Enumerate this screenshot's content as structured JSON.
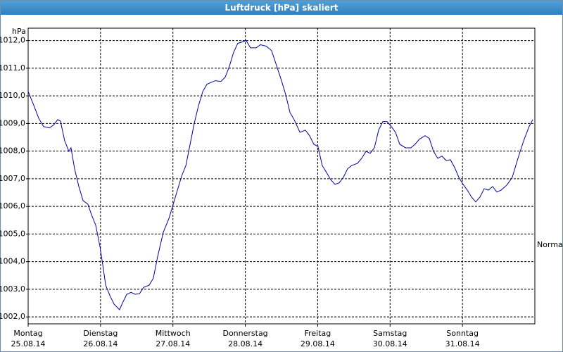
{
  "chart_data": {
    "type": "line",
    "title": "Luftdruck [hPa] skaliert",
    "y_unit": "hPa",
    "annotation": {
      "text": "Normal",
      "value": 1004.6
    },
    "xlim": [
      0,
      168
    ],
    "xticks": [
      {
        "value": 0,
        "label": "Montag",
        "date": "25.08.14"
      },
      {
        "value": 24,
        "label": "Dienstag",
        "date": "26.08.14"
      },
      {
        "value": 48,
        "label": "Mittwoch",
        "date": "27.08.14"
      },
      {
        "value": 72,
        "label": "Donnerstag",
        "date": "28.08.14"
      },
      {
        "value": 96,
        "label": "Freitag",
        "date": "29.08.14"
      },
      {
        "value": 120,
        "label": "Samstag",
        "date": "30.08.14"
      },
      {
        "value": 144,
        "label": "Sonntag",
        "date": "31.08.14"
      }
    ],
    "ylim": [
      1001.75,
      1012.45
    ],
    "yticks": [
      {
        "value": 1002,
        "label": "1002,0"
      },
      {
        "value": 1003,
        "label": "1003,0"
      },
      {
        "value": 1004,
        "label": "1004,0"
      },
      {
        "value": 1005,
        "label": "1005,0"
      },
      {
        "value": 1006,
        "label": "1006,0"
      },
      {
        "value": 1007,
        "label": "1007,0"
      },
      {
        "value": 1008,
        "label": "1008,0"
      },
      {
        "value": 1009,
        "label": "1009,0"
      },
      {
        "value": 1010,
        "label": "1010,0"
      },
      {
        "value": 1011,
        "label": "1011,0"
      },
      {
        "value": 1012,
        "label": "1012,0"
      }
    ],
    "grid": true,
    "color": "#0000a8",
    "x": [
      0,
      1.9,
      3.5,
      5.1,
      7.0,
      8.4,
      9.8,
      10.7,
      12.1,
      13.5,
      14.2,
      15.4,
      16.8,
      18.2,
      19.8,
      21.0,
      22.4,
      23.8,
      24.7,
      25.7,
      27.1,
      28.5,
      30.3,
      31.3,
      32.7,
      34.1,
      35.5,
      36.9,
      38.3,
      40.1,
      41.5,
      42.9,
      44.8,
      46.7,
      48.1,
      49.5,
      50.9,
      52.3,
      53.7,
      55.1,
      56.5,
      57.9,
      59.3,
      60.7,
      62.1,
      63.9,
      65.3,
      66.7,
      68.1,
      69.5,
      70.9,
      72.3,
      73.7,
      75.6,
      77.0,
      78.9,
      80.7,
      82.1,
      84.0,
      85.4,
      86.8,
      88.2,
      90.1,
      91.9,
      93.3,
      94.7,
      96.1,
      97.5,
      98.9,
      100.3,
      101.7,
      103.1,
      104.5,
      105.9,
      107.3,
      109.2,
      110.6,
      112.0,
      113.4,
      114.8,
      116.2,
      117.6,
      119.0,
      120.4,
      121.8,
      123.2,
      125.1,
      126.9,
      128.3,
      129.7,
      131.6,
      133.0,
      134.4,
      135.8,
      137.2,
      138.6,
      140.0,
      141.4,
      142.8,
      144.2,
      145.6,
      147.0,
      148.4,
      149.8,
      151.2,
      152.6,
      154.0,
      155.4,
      156.8,
      158.7,
      160.5,
      162.4,
      164.3,
      166.1,
      167.3
    ],
    "values": [
      1010.16,
      1009.65,
      1009.19,
      1008.89,
      1008.84,
      1008.94,
      1009.14,
      1009.09,
      1008.38,
      1007.99,
      1008.12,
      1007.36,
      1006.72,
      1006.21,
      1006.08,
      1005.7,
      1005.32,
      1004.55,
      1003.91,
      1003.15,
      1002.77,
      1002.46,
      1002.26,
      1002.51,
      1002.82,
      1002.89,
      1002.82,
      1002.84,
      1003.07,
      1003.15,
      1003.4,
      1004.17,
      1005.06,
      1005.57,
      1006.08,
      1006.59,
      1007.1,
      1007.48,
      1008.25,
      1009.02,
      1009.65,
      1010.16,
      1010.42,
      1010.49,
      1010.55,
      1010.52,
      1010.67,
      1011.06,
      1011.57,
      1011.9,
      1011.95,
      1012.0,
      1011.74,
      1011.74,
      1011.85,
      1011.8,
      1011.64,
      1011.18,
      1010.55,
      1010.04,
      1009.4,
      1009.14,
      1008.68,
      1008.76,
      1008.56,
      1008.25,
      1008.17,
      1007.48,
      1007.23,
      1006.97,
      1006.8,
      1006.85,
      1007.05,
      1007.36,
      1007.48,
      1007.56,
      1007.74,
      1007.99,
      1007.92,
      1008.12,
      1008.76,
      1009.07,
      1009.07,
      1008.89,
      1008.68,
      1008.25,
      1008.12,
      1008.12,
      1008.25,
      1008.43,
      1008.56,
      1008.46,
      1007.99,
      1007.74,
      1007.82,
      1007.66,
      1007.69,
      1007.41,
      1007.05,
      1006.8,
      1006.59,
      1006.34,
      1006.16,
      1006.34,
      1006.64,
      1006.59,
      1006.72,
      1006.52,
      1006.59,
      1006.77,
      1007.05,
      1007.74,
      1008.38,
      1008.89,
      1009.14
    ]
  }
}
